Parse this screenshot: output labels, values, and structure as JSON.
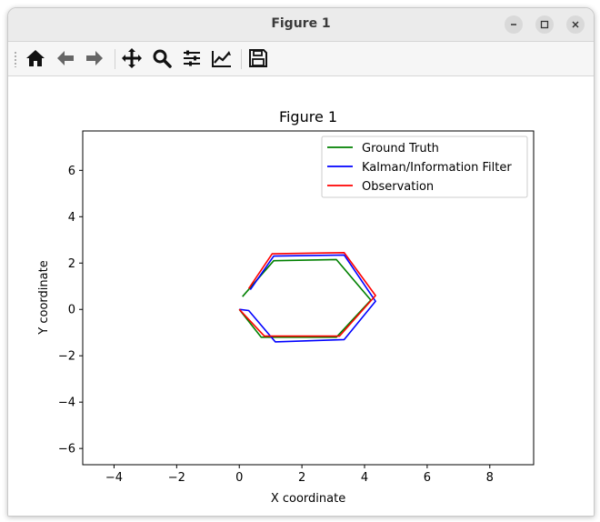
{
  "window": {
    "title": "Figure 1"
  },
  "toolbar": {
    "buttons": [
      {
        "name": "home-icon",
        "tooltip": "Home"
      },
      {
        "name": "back-arrow-icon",
        "tooltip": "Back"
      },
      {
        "name": "forward-arrow-icon",
        "tooltip": "Forward"
      },
      {
        "name": "pan-icon",
        "tooltip": "Pan"
      },
      {
        "name": "zoom-icon",
        "tooltip": "Zoom"
      },
      {
        "name": "subplots-icon",
        "tooltip": "Subplots"
      },
      {
        "name": "customize-icon",
        "tooltip": "Customize"
      },
      {
        "name": "save-icon",
        "tooltip": "Save"
      }
    ]
  },
  "chart_data": {
    "type": "line",
    "title": "Figure 1",
    "xlabel": "X coordinate",
    "ylabel": "Y coordinate",
    "xlim": [
      -5.0,
      9.4
    ],
    "ylim": [
      -6.7,
      7.7
    ],
    "xticks": [
      -4,
      -2,
      0,
      2,
      4,
      6,
      8
    ],
    "yticks": [
      -6,
      -4,
      -2,
      0,
      2,
      4,
      6
    ],
    "xtick_labels": [
      "−4",
      "−2",
      "0",
      "2",
      "4",
      "6",
      "8"
    ],
    "ytick_labels": [
      "−6",
      "−4",
      "−2",
      "0",
      "2",
      "4",
      "6"
    ],
    "grid": false,
    "legend_position": "upper right",
    "series": [
      {
        "name": "Ground Truth",
        "color": "#008000",
        "x": [
          0.0,
          0.7,
          3.1,
          4.2,
          3.1,
          1.1,
          0.1
        ],
        "y": [
          0.0,
          -1.2,
          -1.2,
          0.4,
          2.15,
          2.1,
          0.55
        ]
      },
      {
        "name": "Kalman/Information Filter",
        "color": "#0000ff",
        "x": [
          0.0,
          0.3,
          1.15,
          3.35,
          4.35,
          3.35,
          1.1,
          0.35
        ],
        "y": [
          0.0,
          -0.05,
          -1.4,
          -1.3,
          0.35,
          2.35,
          2.3,
          0.85
        ]
      },
      {
        "name": "Observation",
        "color": "#ff0000",
        "x": [
          0.0,
          0.8,
          3.2,
          4.35,
          3.35,
          1.05,
          0.3
        ],
        "y": [
          0.0,
          -1.15,
          -1.15,
          0.6,
          2.45,
          2.4,
          0.9
        ]
      }
    ]
  }
}
